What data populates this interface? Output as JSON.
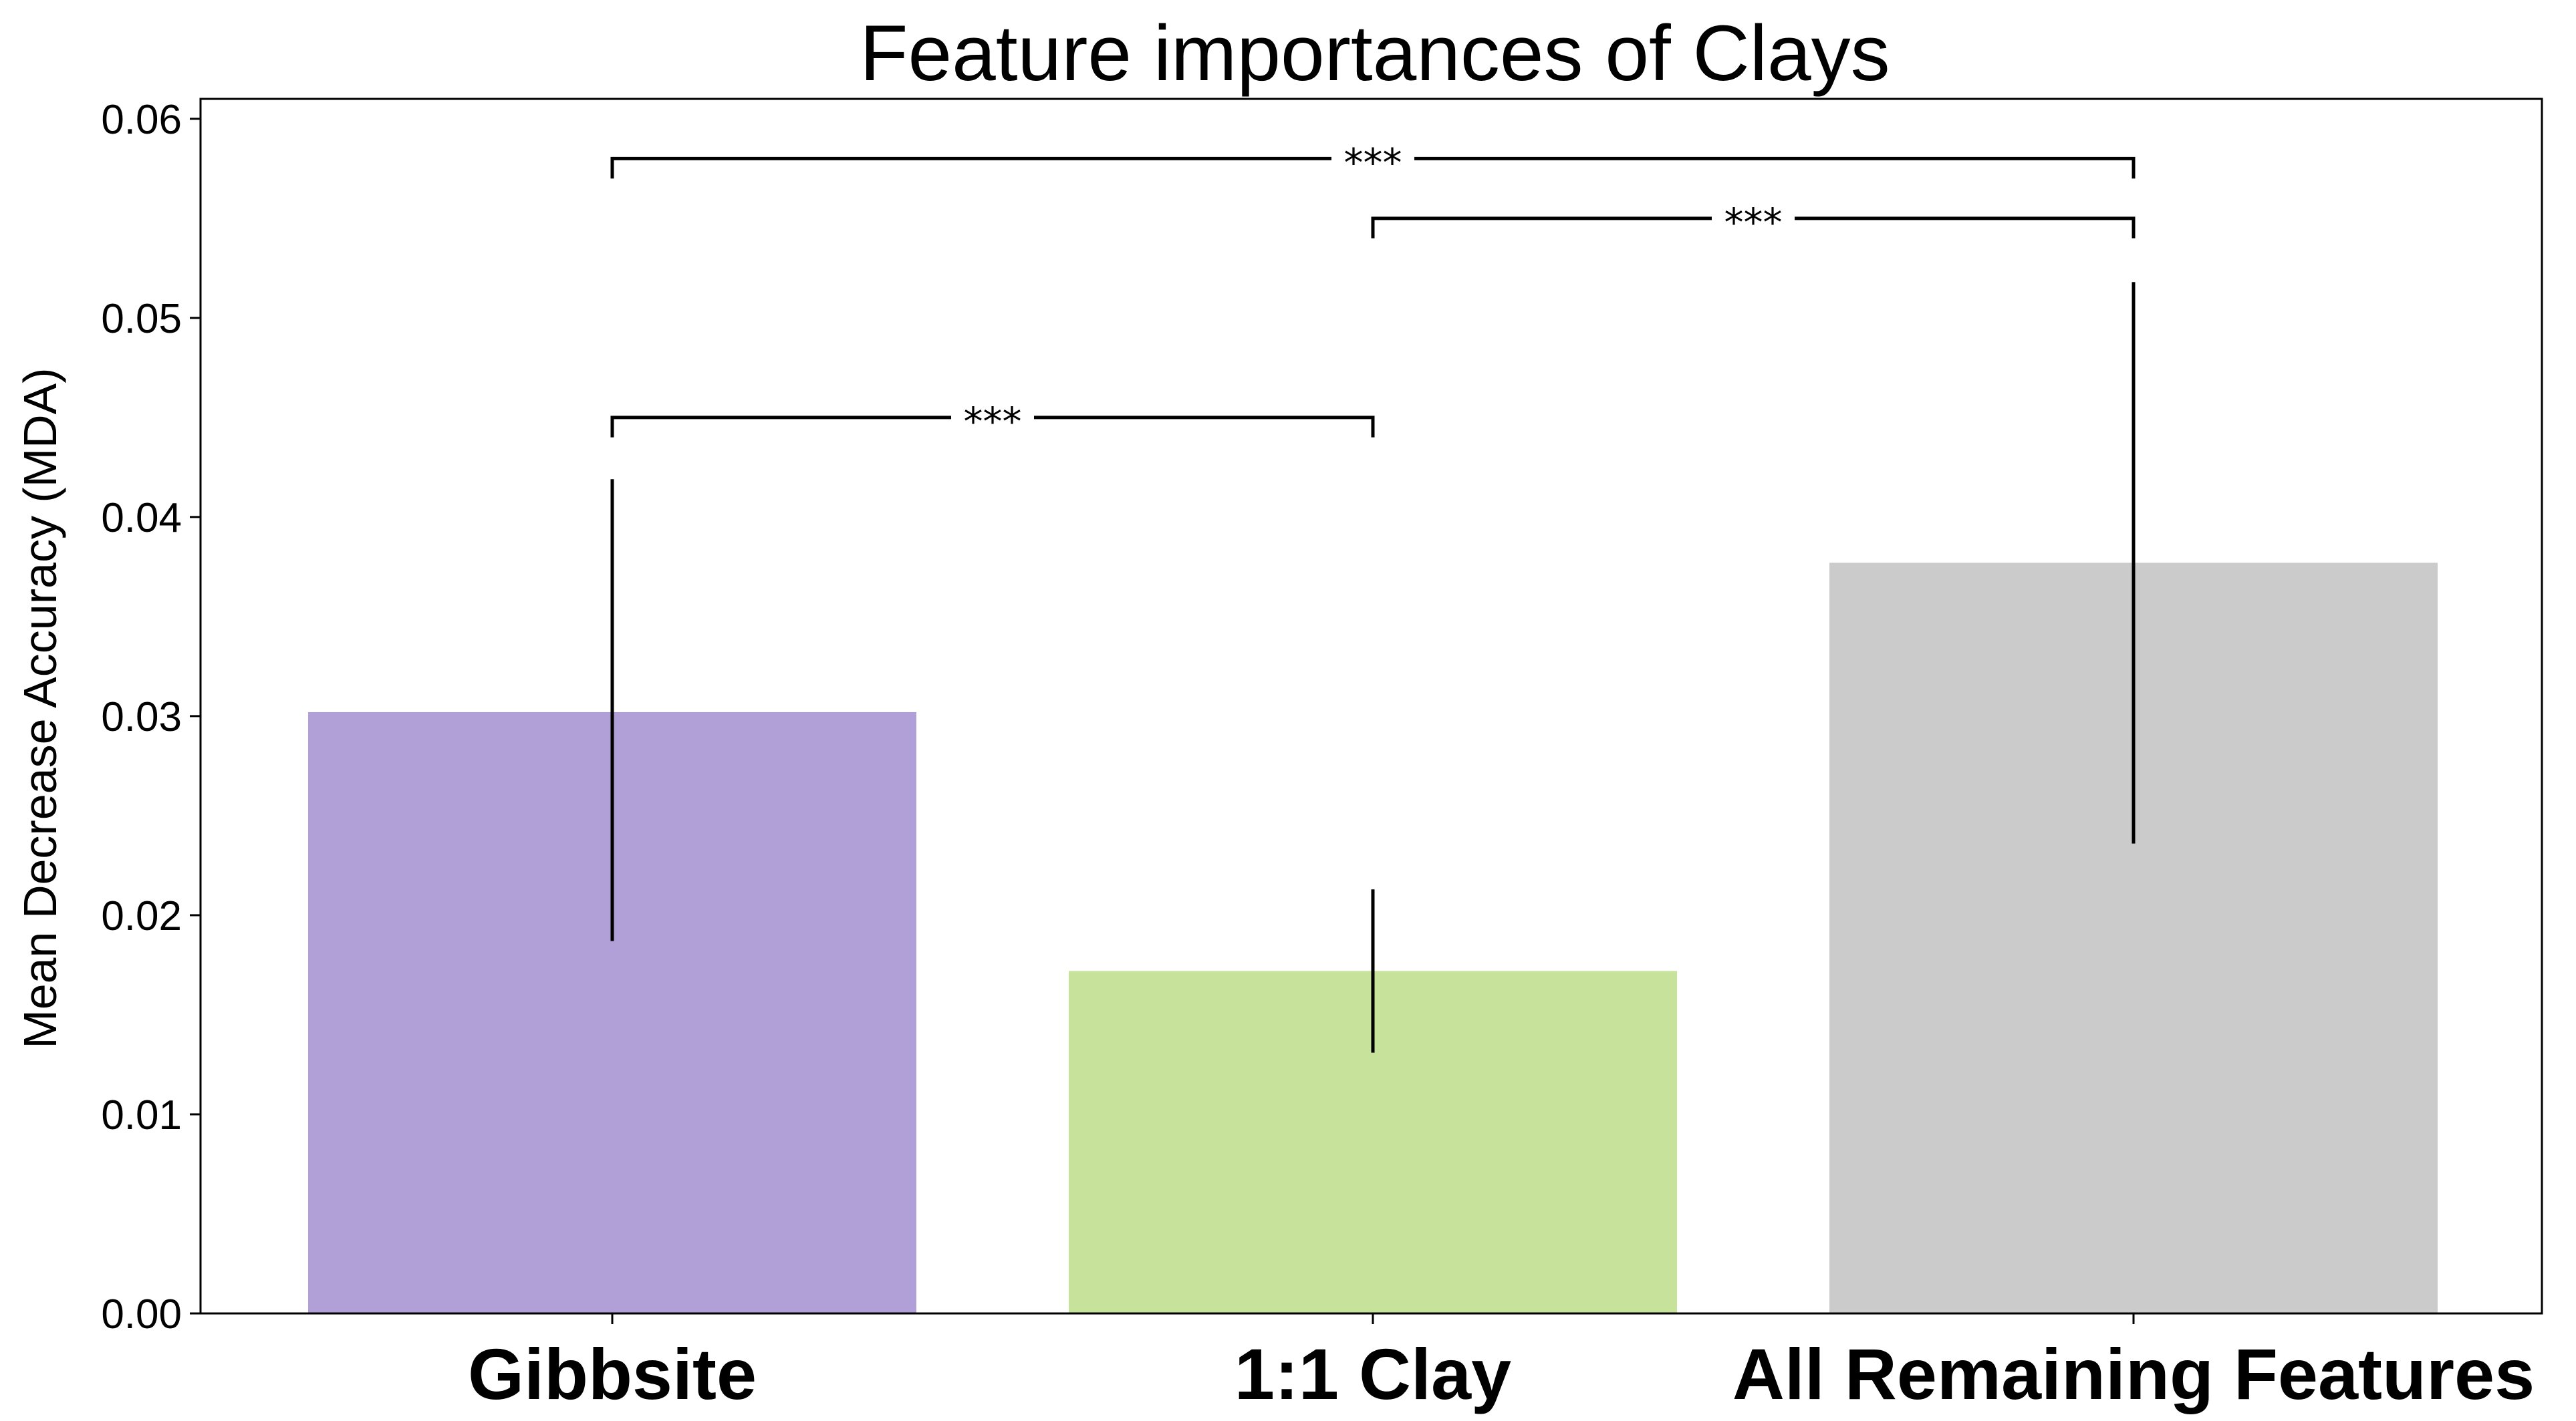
{
  "chart_data": {
    "type": "bar",
    "title": "Feature importances of Clays",
    "xlabel": "",
    "ylabel": "Mean Decrease Accuracy (MDA)",
    "ylim": [
      0,
      0.061
    ],
    "yticks": [
      0.0,
      0.01,
      0.02,
      0.03,
      0.04,
      0.05,
      0.06
    ],
    "ytick_labels": [
      "0.00",
      "0.01",
      "0.02",
      "0.03",
      "0.04",
      "0.05",
      "0.06"
    ],
    "categories": [
      "Gibbsite",
      "1:1 Clay",
      "All Remaining Features"
    ],
    "values": [
      0.0302,
      0.0172,
      0.0377
    ],
    "error_low": [
      0.0187,
      0.0131,
      0.0236
    ],
    "error_high": [
      0.0419,
      0.0213,
      0.0518
    ],
    "colors": [
      "#b19fd8",
      "#c7e29b",
      "#cbcbcb"
    ],
    "grid": false,
    "significance": [
      {
        "from": 0,
        "to": 1,
        "label": "***",
        "y": 0.045,
        "drop": 0.001
      },
      {
        "from": 1,
        "to": 2,
        "label": "***",
        "y": 0.055,
        "drop": 0.001
      },
      {
        "from": 0,
        "to": 2,
        "label": "***",
        "y": 0.058,
        "drop": 0.001
      }
    ]
  }
}
